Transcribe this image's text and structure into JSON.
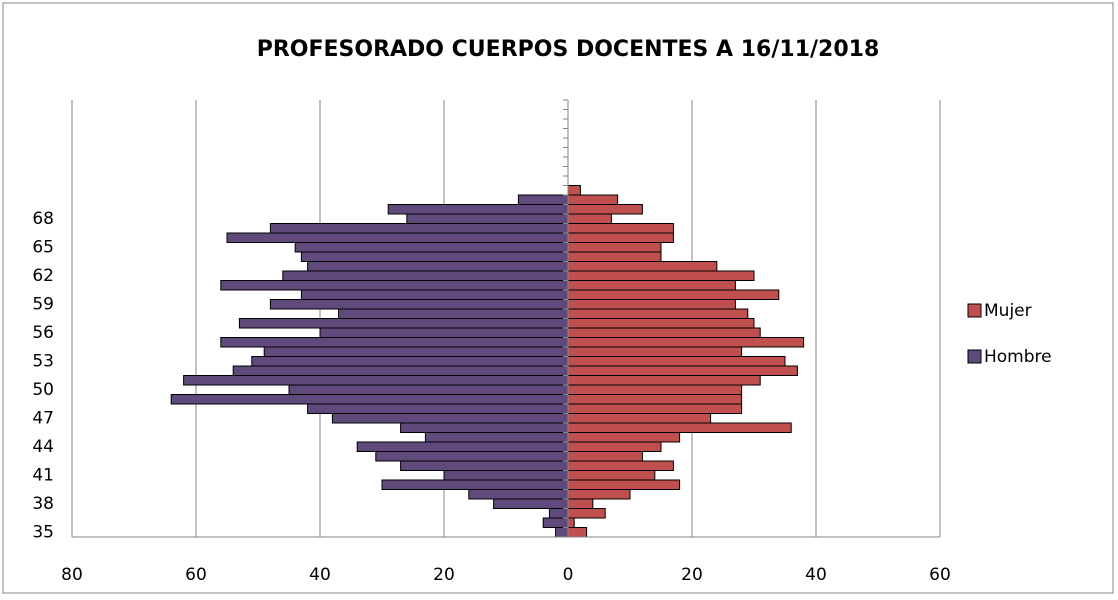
{
  "chart_data": {
    "type": "pyramid",
    "title": "PROFESORADO CUERPOS DOCENTES A 16/11/2018",
    "categories": [
      "35",
      null,
      null,
      "38",
      null,
      null,
      "41",
      null,
      null,
      "44",
      null,
      null,
      "47",
      null,
      null,
      "50",
      null,
      null,
      "53",
      null,
      null,
      "56",
      null,
      null,
      "59",
      null,
      null,
      "62",
      null,
      null,
      "65",
      null,
      null,
      "68",
      null,
      null,
      null,
      null,
      null,
      null,
      null,
      null,
      null,
      null,
      null,
      null
    ],
    "series": [
      {
        "name": "Mujer",
        "color": "#c0504d",
        "values": [
          3,
          1,
          6,
          4,
          10,
          18,
          14,
          17,
          12,
          15,
          18,
          36,
          23,
          28,
          28,
          28,
          31,
          37,
          35,
          28,
          38,
          31,
          30,
          29,
          27,
          34,
          27,
          30,
          24,
          15,
          15,
          17,
          17,
          7,
          12,
          8,
          2,
          0,
          0,
          0,
          0,
          0,
          0,
          0,
          0,
          0
        ]
      },
      {
        "name": "Hombre",
        "color": "#604a7b",
        "values": [
          -2,
          -4,
          -3,
          -12,
          -16,
          -30,
          -20,
          -27,
          -31,
          -34,
          -23,
          -27,
          -38,
          -42,
          -64,
          -45,
          -62,
          -54,
          -51,
          -49,
          -56,
          -40,
          -53,
          -37,
          -48,
          -43,
          -56,
          -46,
          -42,
          -43,
          -44,
          -55,
          -48,
          -26,
          -29,
          -8,
          0,
          0,
          0,
          0,
          0,
          0,
          0,
          0,
          0,
          0
        ]
      }
    ],
    "xlim": [
      -80,
      60
    ],
    "xticks": [
      {
        "value": -80,
        "label": "80"
      },
      {
        "value": -60,
        "label": "60"
      },
      {
        "value": -40,
        "label": "40"
      },
      {
        "value": -20,
        "label": "20"
      },
      0,
      20,
      40,
      60
    ],
    "grid": true,
    "legend": "right"
  }
}
